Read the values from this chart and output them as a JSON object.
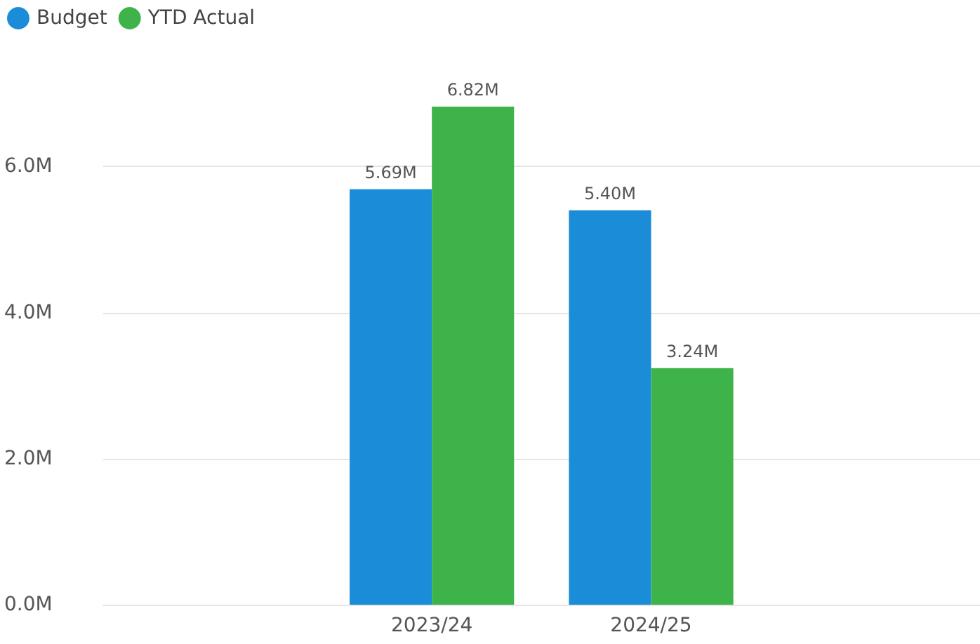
{
  "chart_data": {
    "type": "bar",
    "categories": [
      null,
      "2023/24",
      "2024/25",
      null
    ],
    "series": [
      {
        "name": "Budget",
        "color": "#1a8cd8",
        "values": [
          null,
          5.69,
          5.4,
          null
        ],
        "value_labels": [
          null,
          "5.69M",
          "5.40M",
          null
        ]
      },
      {
        "name": "YTD Actual",
        "color": "#3db34a",
        "values": [
          null,
          6.82,
          3.24,
          null
        ],
        "value_labels": [
          null,
          "6.82M",
          "3.24M",
          null
        ]
      }
    ],
    "ylim": [
      0,
      6.82
    ],
    "yticks": [
      {
        "value": 0,
        "label": "0.0M"
      },
      {
        "value": 2,
        "label": "2.0M"
      },
      {
        "value": 4,
        "label": "4.0M"
      },
      {
        "value": 6,
        "label": "6.0M"
      }
    ],
    "grid": "y",
    "legend": "top left"
  }
}
